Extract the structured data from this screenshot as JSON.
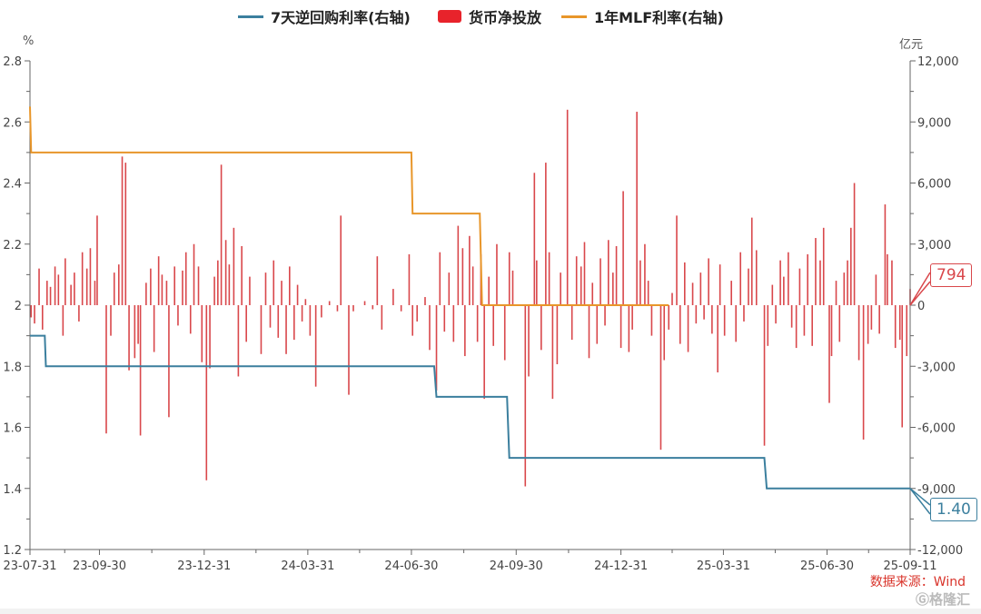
{
  "chart_data": {
    "type": "bar+line",
    "legend": [
      "7天逆回购利率(右轴)",
      "货币净投放",
      "1年MLF利率(右轴)"
    ],
    "legend_position": "top-center",
    "left_axis": {
      "unit": "%",
      "min": 1.2,
      "max": 2.8,
      "ticks": [
        "1.2",
        "1.4",
        "1.6",
        "1.8",
        "2",
        "2.2",
        "2.4",
        "2.6",
        "2.8"
      ]
    },
    "right_axis": {
      "unit": "亿元",
      "min": -12000,
      "max": 12000,
      "ticks": [
        "-12,000",
        "-9,000",
        "-6,000",
        "-3,000",
        "0",
        "3,000",
        "6,000",
        "9,000",
        "12,000"
      ]
    },
    "x_range": [
      "2023-07-31",
      "2025-09-11"
    ],
    "x_ticks": [
      "23-07-31",
      "23-09-30",
      "23-12-31",
      "24-03-31",
      "24-06-30",
      "24-09-30",
      "24-12-31",
      "25-03-31",
      "25-06-30",
      "25-09-11"
    ],
    "x_tick_dates": [
      "2023-07-31",
      "2023-09-30",
      "2023-12-31",
      "2024-03-31",
      "2024-06-30",
      "2024-09-30",
      "2024-12-31",
      "2025-03-31",
      "2025-06-30",
      "2025-09-11"
    ],
    "colors": {
      "repo": "#3b7f9e",
      "net": "#d9474b",
      "mlf": "#e8962a"
    },
    "repo_7d": [
      [
        "2023-07-31",
        1.9
      ],
      [
        "2023-08-13",
        1.9
      ],
      [
        "2023-08-14",
        1.8
      ],
      [
        "2024-07-20",
        1.8
      ],
      [
        "2024-07-22",
        1.7
      ],
      [
        "2024-09-22",
        1.7
      ],
      [
        "2024-09-24",
        1.5
      ],
      [
        "2025-05-06",
        1.5
      ],
      [
        "2025-05-08",
        1.4
      ],
      [
        "2025-09-11",
        1.4
      ]
    ],
    "mlf_1y": [
      [
        "2023-07-31",
        2.65
      ],
      [
        "2023-08-01",
        2.5
      ],
      [
        "2024-06-30",
        2.5
      ],
      [
        "2024-07-01",
        2.3
      ],
      [
        "2024-08-29",
        2.3
      ],
      [
        "2024-08-31",
        2.0
      ],
      [
        "2025-02-11",
        2.0
      ]
    ],
    "net_injection": [
      [
        "2023-08-01",
        -600
      ],
      [
        "2023-08-04",
        -900
      ],
      [
        "2023-08-08",
        1800
      ],
      [
        "2023-08-11",
        -1200
      ],
      [
        "2023-08-15",
        1200
      ],
      [
        "2023-08-18",
        900
      ],
      [
        "2023-08-22",
        1900
      ],
      [
        "2023-08-25",
        1500
      ],
      [
        "2023-08-29",
        -1500
      ],
      [
        "2023-08-31",
        2300
      ],
      [
        "2023-09-05",
        1000
      ],
      [
        "2023-09-08",
        1600
      ],
      [
        "2023-09-12",
        -800
      ],
      [
        "2023-09-15",
        2600
      ],
      [
        "2023-09-19",
        1800
      ],
      [
        "2023-09-22",
        2800
      ],
      [
        "2023-09-26",
        1200
      ],
      [
        "2023-09-28",
        4400
      ],
      [
        "2023-10-06",
        -6300
      ],
      [
        "2023-10-10",
        -1500
      ],
      [
        "2023-10-13",
        1600
      ],
      [
        "2023-10-17",
        2000
      ],
      [
        "2023-10-20",
        7300
      ],
      [
        "2023-10-23",
        7000
      ],
      [
        "2023-10-26",
        -3200
      ],
      [
        "2023-10-31",
        -2600
      ],
      [
        "2023-11-03",
        -1900
      ],
      [
        "2023-11-05",
        -6400
      ],
      [
        "2023-11-10",
        1100
      ],
      [
        "2023-11-14",
        1800
      ],
      [
        "2023-11-17",
        -2300
      ],
      [
        "2023-11-21",
        2400
      ],
      [
        "2023-11-24",
        1500
      ],
      [
        "2023-11-28",
        1200
      ],
      [
        "2023-11-30",
        -5500
      ],
      [
        "2023-12-05",
        1900
      ],
      [
        "2023-12-08",
        -1000
      ],
      [
        "2023-12-12",
        1700
      ],
      [
        "2023-12-15",
        2600
      ],
      [
        "2023-12-19",
        -1400
      ],
      [
        "2023-12-22",
        3000
      ],
      [
        "2023-12-26",
        1900
      ],
      [
        "2023-12-29",
        -2800
      ],
      [
        "2024-01-02",
        -8600
      ],
      [
        "2024-01-05",
        -3100
      ],
      [
        "2024-01-09",
        1400
      ],
      [
        "2024-01-12",
        2200
      ],
      [
        "2024-01-15",
        6900
      ],
      [
        "2024-01-19",
        3200
      ],
      [
        "2024-01-22",
        2000
      ],
      [
        "2024-01-26",
        3800
      ],
      [
        "2024-01-30",
        -3500
      ],
      [
        "2024-02-02",
        2900
      ],
      [
        "2024-02-06",
        -1800
      ],
      [
        "2024-02-09",
        1400
      ],
      [
        "2024-02-19",
        -2400
      ],
      [
        "2024-02-23",
        1600
      ],
      [
        "2024-02-27",
        -1100
      ],
      [
        "2024-03-01",
        2200
      ],
      [
        "2024-03-05",
        -1600
      ],
      [
        "2024-03-08",
        1200
      ],
      [
        "2024-03-12",
        -2400
      ],
      [
        "2024-03-15",
        1900
      ],
      [
        "2024-03-19",
        -1700
      ],
      [
        "2024-03-22",
        1000
      ],
      [
        "2024-03-26",
        -800
      ],
      [
        "2024-03-29",
        300
      ],
      [
        "2024-04-02",
        -1500
      ],
      [
        "2024-04-07",
        -4000
      ],
      [
        "2024-04-12",
        -600
      ],
      [
        "2024-04-19",
        200
      ],
      [
        "2024-04-26",
        -300
      ],
      [
        "2024-04-29",
        4400
      ],
      [
        "2024-05-06",
        -4400
      ],
      [
        "2024-05-10",
        -300
      ],
      [
        "2024-05-20",
        200
      ],
      [
        "2024-05-27",
        -200
      ],
      [
        "2024-05-31",
        2400
      ],
      [
        "2024-06-04",
        -1200
      ],
      [
        "2024-06-14",
        800
      ],
      [
        "2024-06-21",
        -300
      ],
      [
        "2024-06-28",
        2500
      ],
      [
        "2024-07-01",
        -1500
      ],
      [
        "2024-07-05",
        -800
      ],
      [
        "2024-07-12",
        400
      ],
      [
        "2024-07-16",
        -2200
      ],
      [
        "2024-07-22",
        -4200
      ],
      [
        "2024-07-25",
        2600
      ],
      [
        "2024-07-29",
        -1300
      ],
      [
        "2024-08-02",
        1600
      ],
      [
        "2024-08-06",
        -1800
      ],
      [
        "2024-08-10",
        3900
      ],
      [
        "2024-08-14",
        2800
      ],
      [
        "2024-08-16",
        -2500
      ],
      [
        "2024-08-20",
        3400
      ],
      [
        "2024-08-23",
        1900
      ],
      [
        "2024-08-27",
        -1800
      ],
      [
        "2024-08-30",
        2500
      ],
      [
        "2024-09-02",
        -4600
      ],
      [
        "2024-09-06",
        1400
      ],
      [
        "2024-09-10",
        -2000
      ],
      [
        "2024-09-13",
        3000
      ],
      [
        "2024-09-20",
        -2700
      ],
      [
        "2024-09-24",
        2600
      ],
      [
        "2024-09-27",
        1700
      ],
      [
        "2024-10-08",
        -8900
      ],
      [
        "2024-10-11",
        -3500
      ],
      [
        "2024-10-16",
        6500
      ],
      [
        "2024-10-18",
        2200
      ],
      [
        "2024-10-22",
        -2200
      ],
      [
        "2024-10-26",
        7000
      ],
      [
        "2024-10-29",
        2600
      ],
      [
        "2024-11-01",
        -4600
      ],
      [
        "2024-11-05",
        -2900
      ],
      [
        "2024-11-08",
        1600
      ],
      [
        "2024-11-14",
        9600
      ],
      [
        "2024-11-18",
        -1700
      ],
      [
        "2024-11-22",
        2400
      ],
      [
        "2024-11-26",
        1900
      ],
      [
        "2024-11-29",
        3100
      ],
      [
        "2024-12-03",
        -2600
      ],
      [
        "2024-12-06",
        1100
      ],
      [
        "2024-12-10",
        -1900
      ],
      [
        "2024-12-13",
        2300
      ],
      [
        "2024-12-17",
        -1000
      ],
      [
        "2024-12-20",
        3200
      ],
      [
        "2024-12-24",
        1600
      ],
      [
        "2024-12-27",
        2900
      ],
      [
        "2024-12-31",
        -2100
      ],
      [
        "2025-01-02",
        5600
      ],
      [
        "2025-01-07",
        -2300
      ],
      [
        "2025-01-10",
        -1200
      ],
      [
        "2025-01-14",
        9500
      ],
      [
        "2025-01-17",
        2200
      ],
      [
        "2025-01-21",
        3000
      ],
      [
        "2025-01-24",
        1200
      ],
      [
        "2025-01-27",
        -1500
      ],
      [
        "2025-02-04",
        -7100
      ],
      [
        "2025-02-07",
        -2700
      ],
      [
        "2025-02-11",
        -1200
      ],
      [
        "2025-02-14",
        600
      ],
      [
        "2025-02-18",
        4400
      ],
      [
        "2025-02-21",
        -1900
      ],
      [
        "2025-02-25",
        2100
      ],
      [
        "2025-02-28",
        -2300
      ],
      [
        "2025-03-04",
        1100
      ],
      [
        "2025-03-07",
        -900
      ],
      [
        "2025-03-11",
        1600
      ],
      [
        "2025-03-14",
        -700
      ],
      [
        "2025-03-18",
        2300
      ],
      [
        "2025-03-21",
        -1400
      ],
      [
        "2025-03-26",
        -3300
      ],
      [
        "2025-03-28",
        2000
      ],
      [
        "2025-04-01",
        -1500
      ],
      [
        "2025-04-07",
        1200
      ],
      [
        "2025-04-11",
        -1800
      ],
      [
        "2025-04-15",
        2600
      ],
      [
        "2025-04-18",
        -800
      ],
      [
        "2025-04-22",
        1800
      ],
      [
        "2025-04-25",
        4300
      ],
      [
        "2025-04-29",
        2700
      ],
      [
        "2025-05-06",
        -6900
      ],
      [
        "2025-05-09",
        -2000
      ],
      [
        "2025-05-13",
        1000
      ],
      [
        "2025-05-16",
        -900
      ],
      [
        "2025-05-20",
        2200
      ],
      [
        "2025-05-23",
        1400
      ],
      [
        "2025-05-27",
        2600
      ],
      [
        "2025-05-30",
        -1100
      ],
      [
        "2025-06-03",
        -2100
      ],
      [
        "2025-06-06",
        1800
      ],
      [
        "2025-06-10",
        -1500
      ],
      [
        "2025-06-13",
        2500
      ],
      [
        "2025-06-17",
        -2000
      ],
      [
        "2025-06-20",
        3300
      ],
      [
        "2025-06-24",
        2200
      ],
      [
        "2025-06-27",
        3800
      ],
      [
        "2025-07-02",
        -4800
      ],
      [
        "2025-07-04",
        -2500
      ],
      [
        "2025-07-08",
        1200
      ],
      [
        "2025-07-11",
        -1800
      ],
      [
        "2025-07-15",
        1600
      ],
      [
        "2025-07-18",
        2200
      ],
      [
        "2025-07-21",
        3800
      ],
      [
        "2025-07-24",
        6000
      ],
      [
        "2025-07-28",
        -2700
      ],
      [
        "2025-08-01",
        -6600
      ],
      [
        "2025-08-05",
        -1900
      ],
      [
        "2025-08-08",
        -1200
      ],
      [
        "2025-08-12",
        1500
      ],
      [
        "2025-08-15",
        -1400
      ],
      [
        "2025-08-20",
        4950
      ],
      [
        "2025-08-22",
        2500
      ],
      [
        "2025-08-26",
        2200
      ],
      [
        "2025-08-29",
        -2100
      ],
      [
        "2025-09-02",
        -1700
      ],
      [
        "2025-09-04",
        -6000
      ],
      [
        "2025-09-08",
        -2500
      ],
      [
        "2025-09-11",
        794
      ]
    ],
    "annotations": {
      "last_net": "794",
      "last_repo": "1.40"
    },
    "source": "数据来源：Wind",
    "watermark": "格隆汇"
  }
}
